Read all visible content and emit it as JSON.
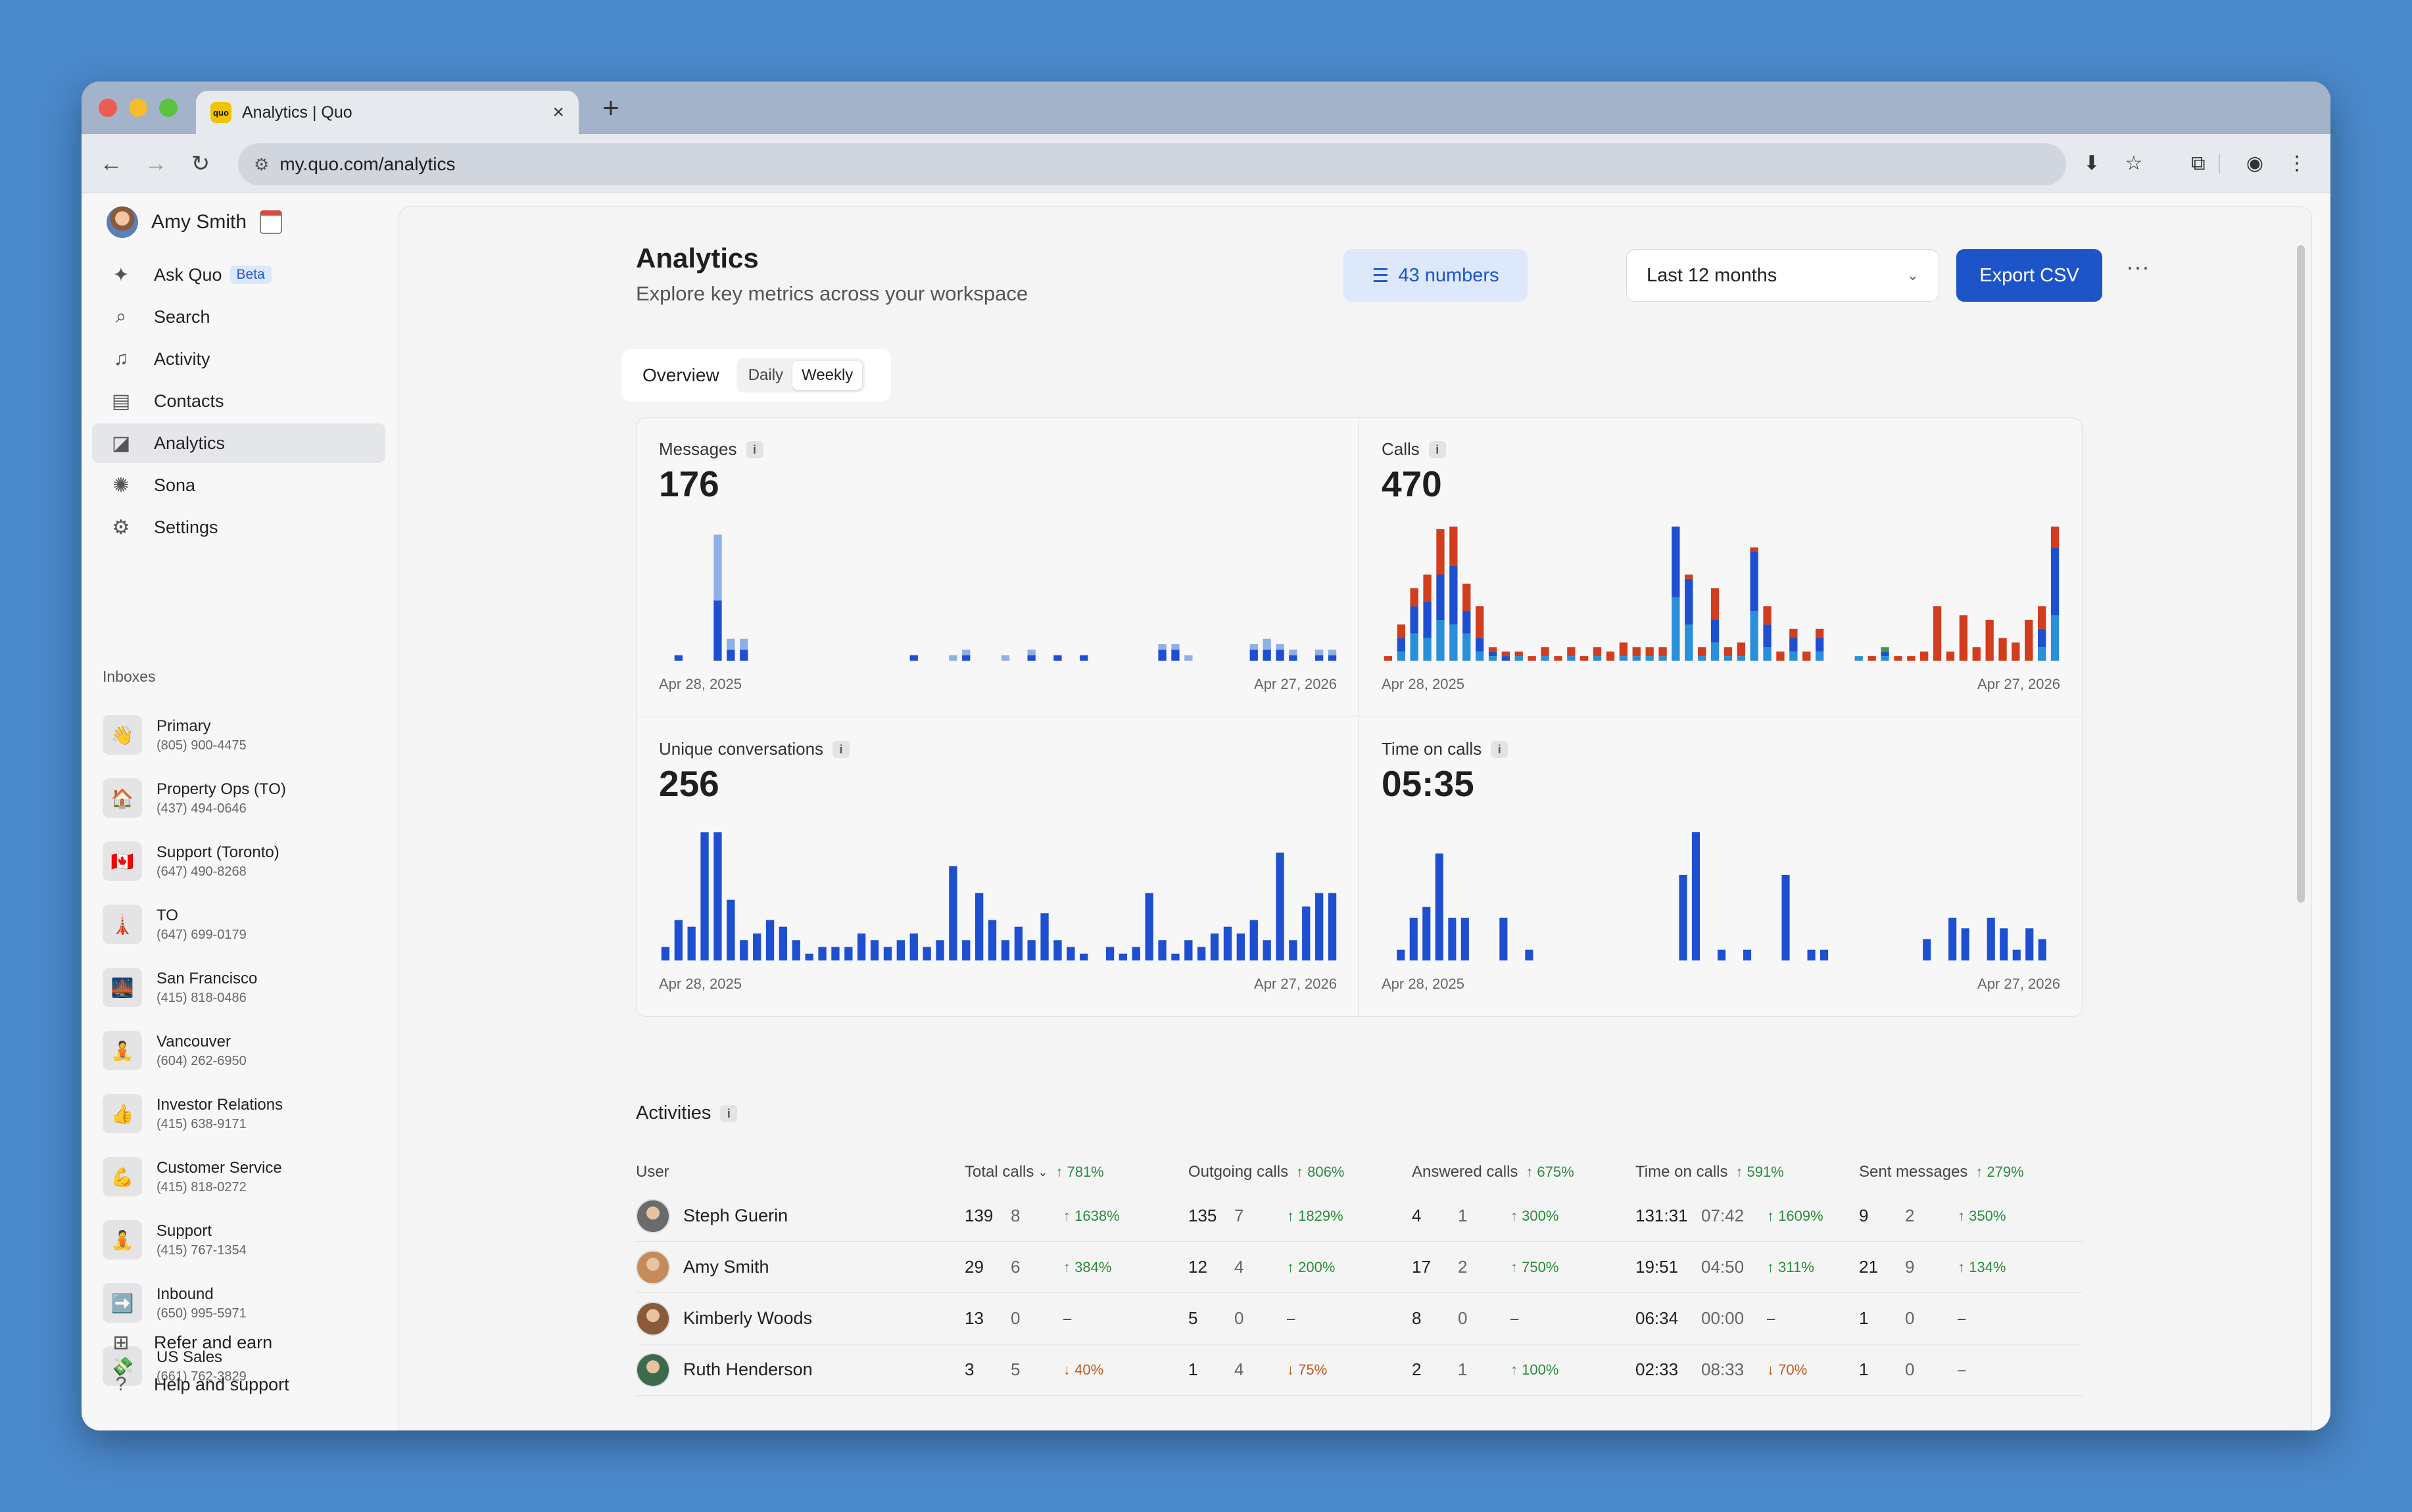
{
  "browser": {
    "tab_title": "Analytics | Quo",
    "tab_favicon": "quo",
    "url": "my.quo.com/analytics"
  },
  "sidebar": {
    "user_name": "Amy Smith",
    "nav": [
      {
        "label": "Ask Quo",
        "icon": "sparkle-icon",
        "badge": "Beta"
      },
      {
        "label": "Search",
        "icon": "search-icon"
      },
      {
        "label": "Activity",
        "icon": "bell-icon"
      },
      {
        "label": "Contacts",
        "icon": "contacts-icon"
      },
      {
        "label": "Analytics",
        "icon": "analytics-icon",
        "active": true
      },
      {
        "label": "Sona",
        "icon": "sona-icon"
      },
      {
        "label": "Settings",
        "icon": "gear-icon"
      }
    ],
    "inboxes_heading": "Inboxes",
    "inboxes": [
      {
        "name": "Primary",
        "number": "(805) 900-4475",
        "emoji": "👋"
      },
      {
        "name": "Property Ops (TO)",
        "number": "(437) 494-0646",
        "emoji": "🏠"
      },
      {
        "name": "Support (Toronto)",
        "number": "(647) 490-8268",
        "emoji": "🇨🇦"
      },
      {
        "name": "TO",
        "number": "(647) 699-0179",
        "emoji": "🗼"
      },
      {
        "name": "San Francisco",
        "number": "(415) 818-0486",
        "emoji": "🌉"
      },
      {
        "name": "Vancouver",
        "number": "(604) 262-6950",
        "emoji": "🧘"
      },
      {
        "name": "Investor Relations",
        "number": "(415) 638-9171",
        "emoji": "👍"
      },
      {
        "name": "Customer Service",
        "number": "(415) 818-0272",
        "emoji": "💪"
      },
      {
        "name": "Support",
        "number": "(415) 767-1354",
        "emoji": "🧘"
      },
      {
        "name": "Inbound",
        "number": "(650) 995-5971",
        "emoji": "➡️"
      },
      {
        "name": "US Sales",
        "number": "(661) 762-3829",
        "emoji": "💸"
      }
    ],
    "footer": [
      {
        "label": "Refer and earn",
        "icon": "gift-icon"
      },
      {
        "label": "Help and support",
        "icon": "help-icon"
      }
    ]
  },
  "header": {
    "title": "Analytics",
    "subtitle": "Explore key metrics across your workspace",
    "numbers_filter": "43 numbers",
    "date_range": "Last 12 months",
    "export_label": "Export CSV"
  },
  "view_toggle": {
    "overview": "Overview",
    "daily": "Daily",
    "weekly": "Weekly",
    "selected": "Weekly"
  },
  "colors": {
    "accent": "#1d55c9",
    "bar_blue": "#1d4fd0",
    "bar_light_blue": "#8fb0e6",
    "bar_red": "#d23d1d",
    "bar_sky": "#2a8fd9",
    "bar_green": "#3e9a3e",
    "up": "#2b8a3e",
    "down": "#c0581a"
  },
  "chart_data": [
    {
      "type": "bar",
      "title": "Messages",
      "value": "176",
      "start_label": "Apr 28, 2025",
      "end_label": "Apr 27, 2026",
      "stacked": true,
      "series": [
        {
          "color": "#1d4fd0",
          "values": [
            0,
            0,
            0,
            4,
            0,
            1,
            0,
            0,
            0,
            0,
            0,
            0,
            0,
            0,
            0,
            0,
            0,
            0,
            0,
            0,
            0,
            0,
            0,
            0,
            0,
            0,
            0,
            0,
            0,
            0,
            0,
            0,
            0,
            0,
            0,
            0,
            0,
            0,
            0,
            0,
            0,
            0,
            0,
            0,
            0,
            0,
            0,
            0,
            0,
            0,
            0,
            0,
            0,
            0,
            0,
            0
          ]
        },
        {
          "color": "#8fb0e6",
          "values": [
            0,
            0,
            0,
            4,
            0,
            1,
            0,
            0,
            0,
            0,
            0,
            0,
            0,
            0,
            0,
            0,
            0,
            0,
            0,
            0,
            0,
            0,
            0,
            0,
            0,
            0,
            0,
            0,
            0,
            0,
            0,
            0,
            0,
            0,
            0,
            0,
            0,
            0,
            0,
            0,
            0,
            0,
            0,
            0,
            0,
            0,
            0,
            0,
            0,
            0,
            0,
            0,
            0,
            0,
            0,
            0
          ]
        }
      ]
    },
    {
      "type": "bar",
      "title": "Calls",
      "value": "470",
      "start_label": "Apr 28, 2025",
      "end_label": "Apr 27, 2026",
      "stacked": true,
      "series": []
    },
    {
      "type": "bar",
      "title": "Unique conversations",
      "value": "256",
      "start_label": "Apr 28, 2025",
      "end_label": "Apr 27, 2026",
      "series": []
    },
    {
      "type": "bar",
      "title": "Time on calls",
      "value": "05:35",
      "start_label": "Apr 28, 2025",
      "end_label": "Apr 27, 2026",
      "series": []
    }
  ],
  "activities": {
    "title": "Activities",
    "columns": [
      {
        "label": "User"
      },
      {
        "label": "Total calls",
        "change": "781%",
        "sorted": true
      },
      {
        "label": "Outgoing calls",
        "change": "806%"
      },
      {
        "label": "Answered calls",
        "change": "675%"
      },
      {
        "label": "Time on calls",
        "change": "591%"
      },
      {
        "label": "Sent messages",
        "change": "279%"
      }
    ],
    "rows": [
      {
        "name": "Steph Guerin",
        "cells": [
          [
            "139",
            "8",
            "1638%",
            "up"
          ],
          [
            "135",
            "7",
            "1829%",
            "up"
          ],
          [
            "4",
            "1",
            "300%",
            "up"
          ],
          [
            "131:31",
            "07:42",
            "1609%",
            "up"
          ],
          [
            "9",
            "2",
            "350%",
            "up"
          ]
        ]
      },
      {
        "name": "Amy Smith",
        "cells": [
          [
            "29",
            "6",
            "384%",
            "up"
          ],
          [
            "12",
            "4",
            "200%",
            "up"
          ],
          [
            "17",
            "2",
            "750%",
            "up"
          ],
          [
            "19:51",
            "04:50",
            "311%",
            "up"
          ],
          [
            "21",
            "9",
            "134%",
            "up"
          ]
        ]
      },
      {
        "name": "Kimberly Woods",
        "cells": [
          [
            "13",
            "0",
            "–",
            "none"
          ],
          [
            "5",
            "0",
            "–",
            "none"
          ],
          [
            "8",
            "0",
            "–",
            "none"
          ],
          [
            "06:34",
            "00:00",
            "–",
            "none"
          ],
          [
            "1",
            "0",
            "–",
            "none"
          ]
        ]
      },
      {
        "name": "Ruth Henderson",
        "cells": [
          [
            "3",
            "5",
            "40%",
            "down"
          ],
          [
            "1",
            "4",
            "75%",
            "down"
          ],
          [
            "2",
            "1",
            "100%",
            "up"
          ],
          [
            "02:33",
            "08:33",
            "70%",
            "down"
          ],
          [
            "1",
            "0",
            "–",
            "none"
          ]
        ]
      }
    ]
  }
}
